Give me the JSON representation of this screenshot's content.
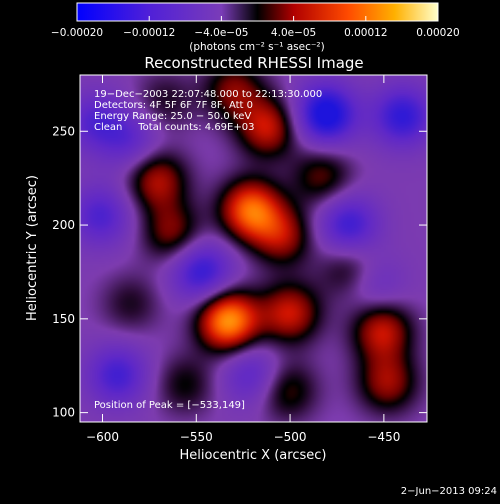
{
  "chart_data": {
    "type": "heatmap",
    "title": "Reconstructed RHESSI Image",
    "xlabel": "Heliocentric X (arcsec)",
    "ylabel": "Heliocentric Y (arcsec)",
    "xlim": [
      -612,
      -427
    ],
    "ylim": [
      95,
      280
    ],
    "x_ticks": [
      -600,
      -550,
      -500,
      -450
    ],
    "x_tick_labels": [
      "−600",
      "−550",
      "−500",
      "−450"
    ],
    "y_ticks": [
      100,
      150,
      200,
      250
    ],
    "y_tick_labels": [
      "100",
      "150",
      "200",
      "250"
    ],
    "colorbar": {
      "range": [
        -0.0002,
        0.0002
      ],
      "ticks": [
        -0.0002,
        -0.00012,
        -4e-05,
        4e-05,
        0.00012,
        0.0002
      ],
      "tick_labels": [
        "−0.00020",
        "−0.00012",
        "−4.0e−05",
        "4.0e−05",
        "0.00012",
        "0.00020"
      ],
      "units_label": "(photons cm⁻² s⁻¹ asec⁻²)"
    },
    "annotations": [
      "19−Dec−2003 22:07:48.000 to 22:13:30.000",
      "Detectors: 4F 5F 6F 7F 8F, Att 0",
      "Energy Range: 25.0 − 50.0 keV",
      "Clean     Total counts: 4.69E+03"
    ],
    "peak_label": "Position of Peak = [−533,149]",
    "peak": [
      -533,
      149
    ],
    "sources": [
      {
        "x": -533,
        "y": 149,
        "value": 0.0002
      },
      {
        "x": -521,
        "y": 208,
        "value": 0.00017
      },
      {
        "x": -504,
        "y": 194,
        "value": 0.0001
      },
      {
        "x": -571,
        "y": 224,
        "value": 0.00011
      },
      {
        "x": -563,
        "y": 196,
        "value": 9e-05
      },
      {
        "x": -500,
        "y": 153,
        "value": 0.00012
      },
      {
        "x": -451,
        "y": 144,
        "value": 0.00012
      },
      {
        "x": -448,
        "y": 116,
        "value": 0.0001
      },
      {
        "x": -512,
        "y": 252,
        "value": 0.00012
      },
      {
        "x": -530,
        "y": 272,
        "value": 9e-05
      },
      {
        "x": -483,
        "y": 226,
        "value": 8e-05
      },
      {
        "x": -468,
        "y": 176,
        "value": 7e-05
      },
      {
        "x": -502,
        "y": 112,
        "value": 8e-05
      },
      {
        "x": -585,
        "y": 158,
        "value": 5e-05
      },
      {
        "x": -567,
        "y": 266,
        "value": 5e-05
      },
      {
        "x": -556,
        "y": 115,
        "value": 6e-05
      },
      {
        "x": -481,
        "y": 259,
        "value": -0.00016
      },
      {
        "x": -547,
        "y": 175,
        "value": -0.00012
      },
      {
        "x": -469,
        "y": 200,
        "value": -0.00011
      },
      {
        "x": -592,
        "y": 120,
        "value": -0.0001
      },
      {
        "x": -601,
        "y": 205,
        "value": -9e-05
      },
      {
        "x": -604,
        "y": 255,
        "value": -8e-05
      },
      {
        "x": -440,
        "y": 258,
        "value": -0.00012
      },
      {
        "x": -520,
        "y": 120,
        "value": -8e-05
      },
      {
        "x": -585,
        "y": 245,
        "value": -7e-05
      },
      {
        "x": -455,
        "y": 168,
        "value": -6e-05
      }
    ]
  },
  "footer": {
    "date": "2−Jun−2013 09:24"
  }
}
